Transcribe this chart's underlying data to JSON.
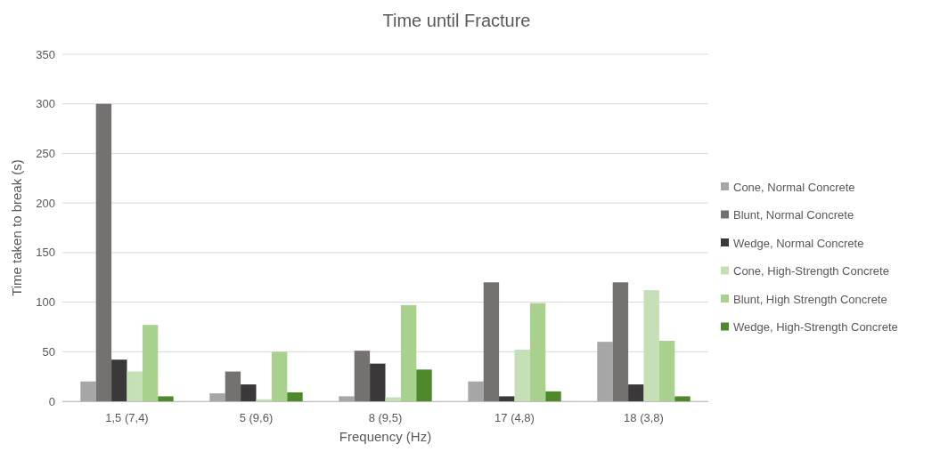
{
  "chart_data": {
    "type": "bar",
    "title": "Time until Fracture",
    "xlabel": "Frequency (Hz)",
    "ylabel": "Time taken to break (s)",
    "categories": [
      "1,5 (7,4)",
      "5 (9,6)",
      "8 (9,5)",
      "17 (4,8)",
      "18 (3,8)"
    ],
    "series": [
      {
        "name": "Cone, Normal Concrete",
        "color": "#a6a6a6",
        "values": [
          20,
          8,
          5,
          20,
          60
        ]
      },
      {
        "name": "Blunt, Normal Concrete",
        "color": "#767171",
        "values": [
          300,
          30,
          51,
          120,
          120
        ]
      },
      {
        "name": "Wedge, Normal Concrete",
        "color": "#3a3838",
        "values": [
          42,
          17,
          38,
          5,
          17
        ]
      },
      {
        "name": "Cone, High-Strength Concrete",
        "color": "#c5e0b4",
        "values": [
          30,
          2,
          4,
          52,
          112
        ]
      },
      {
        "name": "Blunt, High Strength Concrete",
        "color": "#a9d18e",
        "values": [
          77,
          50,
          97,
          99,
          61
        ]
      },
      {
        "name": "Wedge, High-Strength Concrete",
        "color": "#4e8a2c",
        "values": [
          5,
          9,
          32,
          10,
          5
        ]
      }
    ],
    "ylim": [
      0,
      350
    ],
    "yticks": [
      0,
      50,
      100,
      150,
      200,
      250,
      300,
      350
    ],
    "grid": "y",
    "legend": "right"
  }
}
